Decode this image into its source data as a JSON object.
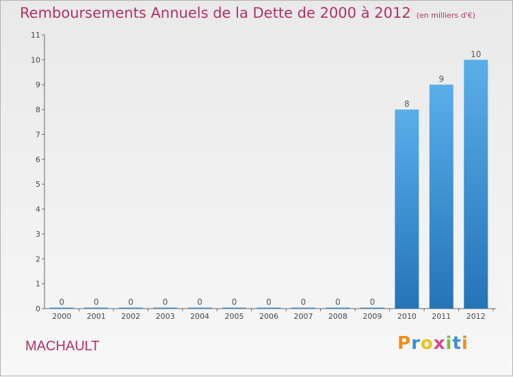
{
  "chart_data": {
    "type": "bar",
    "title": "Remboursements Annuels de la Dette de 2000 à 2012",
    "subtitle": "(en milliers d'€)",
    "categories": [
      "2000",
      "2001",
      "2002",
      "2003",
      "2004",
      "2005",
      "2006",
      "2007",
      "2008",
      "2009",
      "2010",
      "2011",
      "2012"
    ],
    "values": [
      0,
      0,
      0,
      0,
      0,
      0,
      0,
      0,
      0,
      0,
      8,
      9,
      10
    ],
    "ylim": [
      0,
      11
    ],
    "yticks": [
      0,
      1,
      2,
      3,
      4,
      5,
      6,
      7,
      8,
      9,
      10,
      11
    ],
    "grid": false,
    "bar_color": "#3a8fd6"
  },
  "place_name": "MACHAULT",
  "logo": {
    "letters": [
      "P",
      "r",
      "o",
      "x",
      "i",
      "t",
      "i"
    ],
    "colors": [
      "#f28c1a",
      "#3a8fd6",
      "#e8c21b",
      "#d64b8a",
      "#7bbf3a",
      "#3a8fd6",
      "#f28c1a"
    ]
  }
}
